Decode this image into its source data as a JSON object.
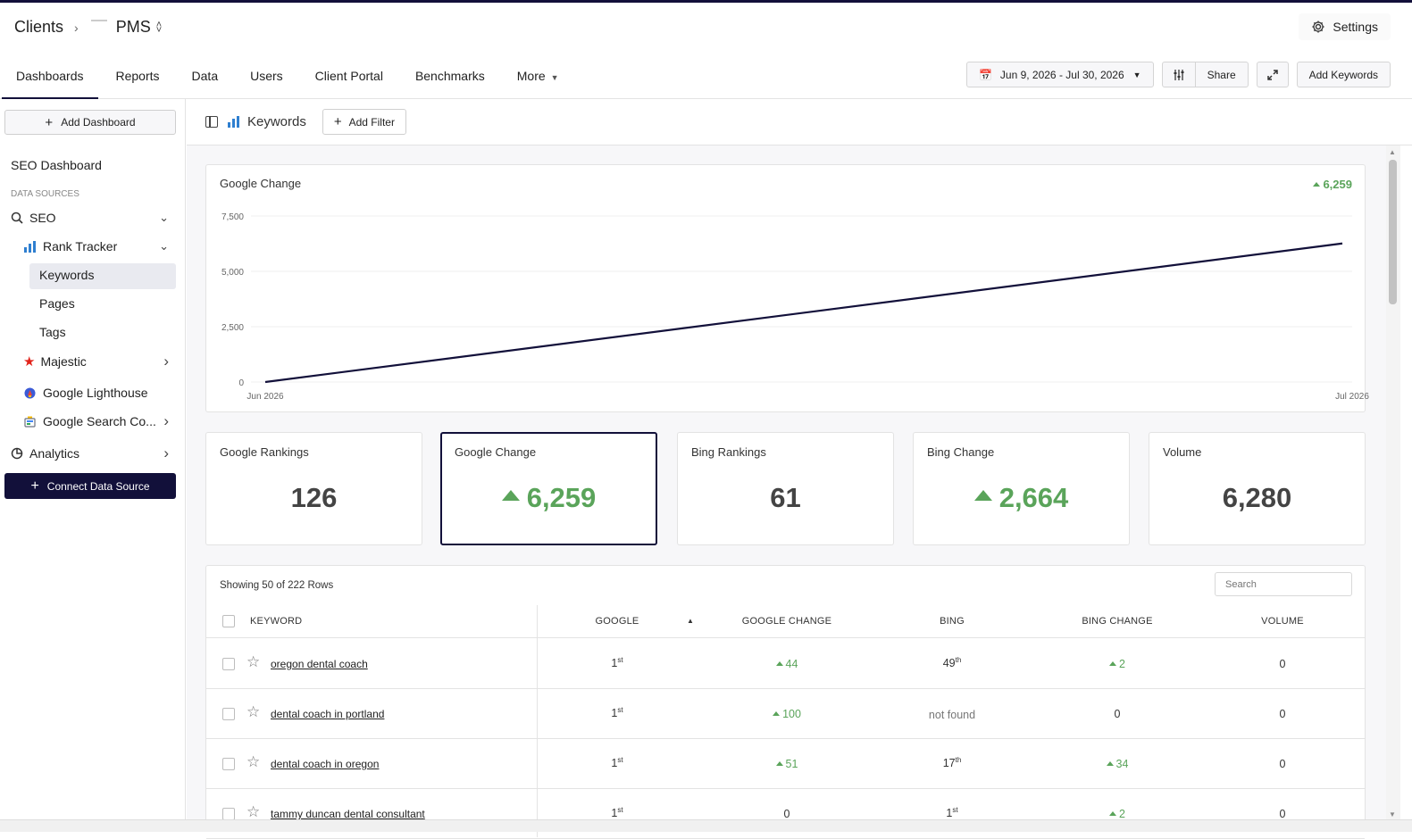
{
  "header": {
    "breadcrumb_root": "Clients",
    "breadcrumb_client": "PMS",
    "settings_label": "Settings"
  },
  "tabs": [
    {
      "label": "Dashboards"
    },
    {
      "label": "Reports"
    },
    {
      "label": "Data"
    },
    {
      "label": "Users"
    },
    {
      "label": "Client Portal"
    },
    {
      "label": "Benchmarks"
    },
    {
      "label": "More"
    }
  ],
  "toolbar": {
    "date_range": "Jun 9, 2026 - Jul 30, 2026",
    "share_label": "Share",
    "add_keywords_label": "Add Keywords"
  },
  "sidebar": {
    "add_dashboard_label": "Add Dashboard",
    "dashboard_name": "SEO Dashboard",
    "section_label": "DATA SOURCES",
    "seo_label": "SEO",
    "rank_tracker_label": "Rank Tracker",
    "keywords_label": "Keywords",
    "pages_label": "Pages",
    "tags_label": "Tags",
    "majestic_label": "Majestic",
    "lighthouse_label": "Google Lighthouse",
    "search_console_label": "Google Search Co...",
    "analytics_label": "Analytics",
    "connect_label": "Connect Data Source"
  },
  "subbar": {
    "title": "Keywords",
    "add_filter_label": "Add Filter"
  },
  "chart_data": {
    "type": "line",
    "title": "Google Change",
    "headline_value": "6,259",
    "x_start_label": "Jun 2026",
    "x_end_label": "Jul 2026",
    "y_ticks": [
      "0",
      "2,500",
      "5,000",
      "7,500"
    ],
    "ylim": [
      0,
      7500
    ],
    "series": [
      {
        "values": [
          0,
          6259
        ]
      }
    ],
    "grid": true,
    "line_color": "#12103a"
  },
  "kpis": [
    {
      "label": "Google Rankings",
      "value": "126",
      "positive": false
    },
    {
      "label": "Google Change",
      "value": "6,259",
      "positive": true
    },
    {
      "label": "Bing Rankings",
      "value": "61",
      "positive": false
    },
    {
      "label": "Bing Change",
      "value": "2,664",
      "positive": true
    },
    {
      "label": "Volume",
      "value": "6,280",
      "positive": false
    }
  ],
  "table": {
    "row_count_text": "Showing 50 of 222 Rows",
    "search_placeholder": "Search",
    "columns": [
      "KEYWORD",
      "GOOGLE",
      "GOOGLE CHANGE",
      "BING",
      "BING CHANGE",
      "VOLUME"
    ],
    "rows": [
      {
        "keyword": "oregon dental coach",
        "google": "1",
        "google_sup": "st",
        "google_change": "44",
        "bing": "49",
        "bing_sup": "th",
        "bing_change": "2",
        "volume": "0"
      },
      {
        "keyword": "dental coach in portland",
        "google": "1",
        "google_sup": "st",
        "google_change": "100",
        "bing": "not found",
        "bing_sup": "",
        "bing_change": "0",
        "volume": "0"
      },
      {
        "keyword": "dental coach in oregon",
        "google": "1",
        "google_sup": "st",
        "google_change": "51",
        "bing": "17",
        "bing_sup": "th",
        "bing_change": "34",
        "volume": "0"
      },
      {
        "keyword": "tammy duncan dental consultant",
        "google": "1",
        "google_sup": "st",
        "google_change": "0",
        "bing": "1",
        "bing_sup": "st",
        "bing_change": "2",
        "volume": "0"
      }
    ]
  },
  "colors": {
    "brand_dark": "#12103a",
    "positive": "#5aa45a"
  }
}
